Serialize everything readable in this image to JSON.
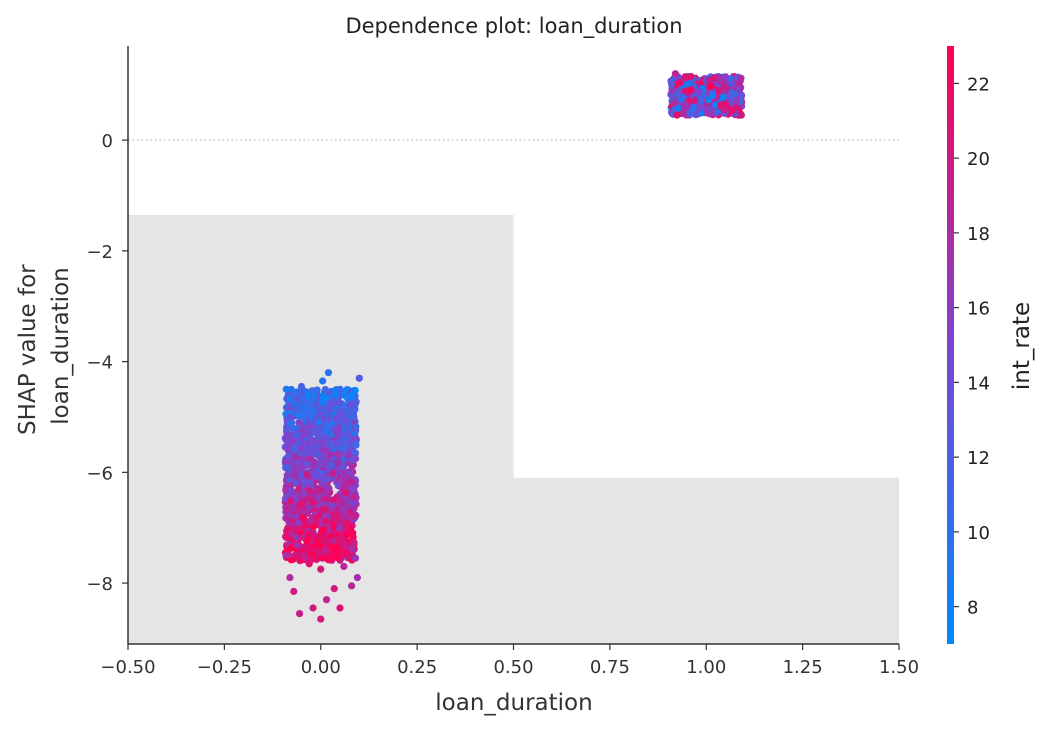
{
  "chart_data": {
    "type": "scatter",
    "title": "Dependence plot: loan_duration",
    "xlabel": "loan_duration",
    "ylabel_lines": [
      "SHAP value for",
      "loan_duration"
    ],
    "xlim": [
      -0.5,
      1.5
    ],
    "ylim": [
      -9.1,
      1.7
    ],
    "x_ticks": [
      -0.5,
      -0.25,
      0.0,
      0.25,
      0.5,
      0.75,
      1.0,
      1.25,
      1.5
    ],
    "x_tick_labels": [
      "−0.50",
      "−0.25",
      "0.00",
      "0.25",
      "0.50",
      "0.75",
      "1.00",
      "1.25",
      "1.50"
    ],
    "y_ticks": [
      0,
      -2,
      -4,
      -6,
      -8
    ],
    "y_tick_labels": [
      "0",
      "−2",
      "−4",
      "−6",
      "−8"
    ],
    "zero_line": true,
    "grid": false,
    "background_histogram": {
      "color": "#e5e5e5",
      "bins": [
        {
          "x0": -0.5,
          "x1": 0.5,
          "height": 7.75
        },
        {
          "x0": 0.5,
          "x1": 1.5,
          "height": 3.0
        }
      ]
    },
    "colorbar": {
      "label": "int_rate",
      "range": [
        7.0,
        23.0
      ],
      "ticks": [
        8,
        10,
        12,
        14,
        16,
        18,
        20,
        22
      ],
      "tick_labels": [
        "8",
        "10",
        "12",
        "14",
        "16",
        "18",
        "20",
        "22"
      ],
      "colors": [
        "#008afb",
        "#7b45d2",
        "#ff0052"
      ]
    },
    "series": [
      {
        "x_center": 0.0,
        "x_jitter": 0.1,
        "points": [
          [
            -0.055,
            -8.55,
            19.5
          ],
          [
            0.0,
            -8.65,
            20.5
          ],
          [
            -0.02,
            -8.45,
            20.0
          ],
          [
            0.05,
            -8.45,
            21.0
          ],
          [
            0.015,
            -8.3,
            19.0
          ],
          [
            0.08,
            -8.05,
            18.5
          ],
          [
            -0.07,
            -8.15,
            19.8
          ],
          [
            0.035,
            -8.1,
            20.2
          ],
          [
            -0.08,
            -7.9,
            18.0
          ],
          [
            0.095,
            -7.9,
            17.5
          ],
          [
            0.0,
            -7.75,
            20.5
          ],
          [
            -0.03,
            -7.65,
            21.0
          ],
          [
            0.06,
            -7.7,
            18.7
          ],
          [
            -0.09,
            -7.5,
            17.8
          ],
          [
            0.09,
            -7.55,
            16.5
          ],
          [
            0.02,
            -4.2,
            9.5
          ],
          [
            0.1,
            -4.3,
            12.5
          ],
          [
            0.005,
            -4.35,
            9.2
          ],
          [
            -0.05,
            -4.45,
            11.5
          ],
          [
            0.05,
            -4.5,
            10.5
          ]
        ],
        "cluster": {
          "count": 1500,
          "y_range": [
            -7.6,
            -4.5
          ],
          "x_jitter": 0.1
        }
      },
      {
        "x_center": 1.0,
        "x_jitter": 0.1,
        "points": [
          [
            0.92,
            1.2,
            19.0
          ],
          [
            0.96,
            1.15,
            21.0
          ],
          [
            1.02,
            1.12,
            20.5
          ],
          [
            1.09,
            1.12,
            18.0
          ]
        ],
        "cluster": {
          "count": 600,
          "y_range": [
            0.45,
            1.15
          ],
          "x_jitter": 0.1
        }
      }
    ]
  }
}
